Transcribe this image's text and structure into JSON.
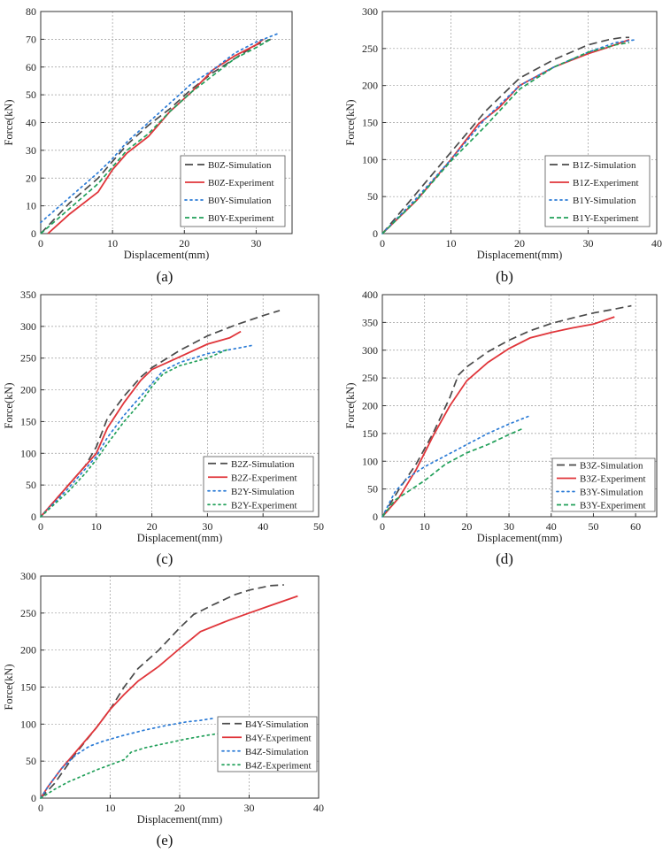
{
  "figure": {
    "panel_labels": [
      "(a)",
      "(b)",
      "(c)",
      "(d)",
      "(e)"
    ]
  },
  "colors": {
    "simulation_z": "#4a4a4a",
    "experiment_red": "#e0353a",
    "simulation_blue": "#2b7bd6",
    "experiment_green": "#22a05a"
  },
  "chart_data": [
    {
      "type": "line",
      "label": "(a)",
      "xlabel": "Displacement(mm)",
      "ylabel": "Force(kN)",
      "xlim": [
        0,
        35
      ],
      "ylim": [
        0,
        80
      ],
      "xticks": [
        0,
        10,
        20,
        30
      ],
      "yticks": [
        0,
        10,
        20,
        30,
        40,
        50,
        60,
        70,
        80
      ],
      "legend_position": "bottom-right",
      "series": [
        {
          "name": "B0Z-Simulation",
          "style": "dash",
          "color": "#4a4a4a",
          "x": [
            0,
            4,
            8,
            10,
            12,
            15,
            18,
            21,
            24,
            27,
            30,
            32
          ],
          "y": [
            0,
            11,
            20,
            26,
            32,
            39,
            45,
            52,
            58,
            63,
            68,
            70
          ]
        },
        {
          "name": "B0Z-Experiment",
          "style": "solid",
          "color": "#e0353a",
          "x": [
            1,
            4,
            8,
            10,
            12,
            15,
            18,
            21,
            24,
            27,
            30,
            31
          ],
          "y": [
            0,
            7,
            15,
            23,
            29,
            35,
            44,
            51,
            59,
            64,
            68,
            70
          ]
        },
        {
          "name": "B0Y-Simulation",
          "style": "dot",
          "color": "#2b7bd6",
          "x": [
            0,
            4,
            8,
            10,
            12,
            15,
            18,
            21,
            24,
            27,
            30,
            33
          ],
          "y": [
            4,
            13,
            22,
            27,
            33,
            40,
            47,
            54,
            59,
            65,
            69,
            72
          ]
        },
        {
          "name": "B0Y-Experiment",
          "style": "shortdash",
          "color": "#22a05a",
          "x": [
            0,
            4,
            8,
            10,
            12,
            15,
            18,
            21,
            24,
            27,
            30,
            32
          ],
          "y": [
            0,
            9,
            18,
            24,
            30,
            36,
            44,
            51,
            57,
            63,
            67,
            70
          ]
        }
      ]
    },
    {
      "type": "line",
      "label": "(b)",
      "xlabel": "Displacement(mm)",
      "ylabel": "Force(kN)",
      "xlim": [
        0,
        40
      ],
      "ylim": [
        0,
        300
      ],
      "xticks": [
        0,
        10,
        20,
        30,
        40
      ],
      "yticks": [
        0,
        50,
        100,
        150,
        200,
        250,
        300
      ],
      "legend_position": "bottom-right",
      "series": [
        {
          "name": "B1Z-Simulation",
          "style": "dash",
          "color": "#4a4a4a",
          "x": [
            0,
            5,
            10,
            15,
            20,
            25,
            30,
            33,
            35,
            36
          ],
          "y": [
            0,
            55,
            110,
            165,
            210,
            235,
            255,
            262,
            265,
            265
          ]
        },
        {
          "name": "B1Z-Experiment",
          "style": "solid",
          "color": "#e0353a",
          "x": [
            0,
            5,
            10,
            14,
            17,
            20,
            25,
            30,
            33,
            36
          ],
          "y": [
            0,
            45,
            100,
            148,
            170,
            200,
            225,
            243,
            252,
            262
          ]
        },
        {
          "name": "B1Y-Simulation",
          "style": "dot",
          "color": "#2b7bd6",
          "x": [
            0,
            5,
            10,
            15,
            20,
            25,
            30,
            34,
            37
          ],
          "y": [
            0,
            48,
            100,
            155,
            200,
            225,
            245,
            258,
            262
          ]
        },
        {
          "name": "B1Y-Experiment",
          "style": "shortdash",
          "color": "#22a05a",
          "x": [
            0,
            5,
            10,
            15,
            20,
            25,
            30,
            34,
            36
          ],
          "y": [
            0,
            45,
            98,
            145,
            195,
            225,
            245,
            255,
            258
          ]
        }
      ]
    },
    {
      "type": "line",
      "label": "(c)",
      "xlabel": "Displacement(mm)",
      "ylabel": "Force(kN)",
      "xlim": [
        0,
        50
      ],
      "ylim": [
        0,
        350
      ],
      "xticks": [
        0,
        10,
        20,
        30,
        40,
        50
      ],
      "yticks": [
        0,
        50,
        100,
        150,
        200,
        250,
        300,
        350
      ],
      "legend_position": "bottom-right",
      "series": [
        {
          "name": "B2Z-Simulation",
          "style": "dash",
          "color": "#4a4a4a",
          "x": [
            0,
            5,
            8,
            10,
            12,
            15,
            18,
            20,
            25,
            30,
            35,
            40,
            43
          ],
          "y": [
            0,
            50,
            80,
            110,
            155,
            190,
            220,
            235,
            262,
            285,
            302,
            317,
            325
          ]
        },
        {
          "name": "B2Z-Experiment",
          "style": "solid",
          "color": "#e0353a",
          "x": [
            0,
            5,
            8,
            10,
            12,
            15,
            18,
            20,
            25,
            30,
            34,
            36
          ],
          "y": [
            0,
            50,
            80,
            100,
            140,
            180,
            215,
            232,
            252,
            272,
            282,
            292
          ]
        },
        {
          "name": "B2Y-Simulation",
          "style": "dot",
          "color": "#2b7bd6",
          "x": [
            0,
            5,
            8,
            10,
            12,
            15,
            18,
            20,
            22,
            25,
            30,
            35,
            38
          ],
          "y": [
            0,
            45,
            75,
            95,
            125,
            160,
            190,
            210,
            230,
            243,
            257,
            265,
            270
          ]
        },
        {
          "name": "B2Y-Experiment",
          "style": "dot",
          "color": "#22a05a",
          "x": [
            0,
            5,
            8,
            10,
            12,
            15,
            18,
            20,
            22,
            25,
            30,
            34
          ],
          "y": [
            0,
            40,
            68,
            90,
            115,
            150,
            180,
            205,
            225,
            238,
            250,
            265
          ]
        }
      ]
    },
    {
      "type": "line",
      "label": "(d)",
      "xlabel": "Displacement(mm)",
      "ylabel": "Force(kN)",
      "xlim": [
        0,
        65
      ],
      "ylim": [
        0,
        400
      ],
      "xticks": [
        0,
        10,
        20,
        30,
        40,
        50,
        60
      ],
      "yticks": [
        0,
        50,
        100,
        150,
        200,
        250,
        300,
        350,
        400
      ],
      "legend_position": "bottom-right",
      "series": [
        {
          "name": "B3Z-Simulation",
          "style": "dash",
          "color": "#4a4a4a",
          "x": [
            0,
            4,
            8,
            12,
            16,
            18,
            20,
            25,
            30,
            35,
            40,
            45,
            50,
            55,
            59
          ],
          "y": [
            0,
            50,
            95,
            150,
            215,
            255,
            270,
            297,
            318,
            335,
            348,
            358,
            367,
            374,
            380
          ]
        },
        {
          "name": "B3Z-Experiment",
          "style": "solid",
          "color": "#e0353a",
          "x": [
            0,
            4,
            8,
            12,
            16,
            20,
            25,
            30,
            35,
            40,
            45,
            50,
            55
          ],
          "y": [
            0,
            35,
            85,
            145,
            200,
            245,
            278,
            303,
            322,
            332,
            340,
            347,
            360
          ]
        },
        {
          "name": "B3Y-Simulation",
          "style": "dot",
          "color": "#2b7bd6",
          "x": [
            0,
            3,
            6,
            10,
            15,
            20,
            25,
            30,
            35
          ],
          "y": [
            0,
            45,
            70,
            90,
            110,
            130,
            150,
            167,
            182
          ]
        },
        {
          "name": "B3Y-Experiment",
          "style": "shortdash",
          "color": "#22a05a",
          "x": [
            0,
            3,
            6,
            10,
            15,
            20,
            25,
            30,
            33
          ],
          "y": [
            0,
            30,
            45,
            65,
            95,
            115,
            130,
            148,
            158
          ]
        }
      ]
    },
    {
      "type": "line",
      "label": "(e)",
      "xlabel": "Displacement(mm)",
      "ylabel": "Force(kN)",
      "xlim": [
        0,
        40
      ],
      "ylim": [
        0,
        300
      ],
      "xticks": [
        0,
        10,
        20,
        30,
        40
      ],
      "yticks": [
        0,
        50,
        100,
        150,
        200,
        250,
        300
      ],
      "legend_position": "bottom-right",
      "series": [
        {
          "name": "B4Y-Simulation",
          "style": "dash",
          "color": "#4a4a4a",
          "x": [
            0,
            2,
            5,
            8,
            10,
            12,
            14,
            17,
            20,
            22,
            25,
            28,
            30,
            33,
            35
          ],
          "y": [
            0,
            20,
            60,
            95,
            120,
            150,
            175,
            200,
            230,
            248,
            262,
            275,
            281,
            287,
            288
          ]
        },
        {
          "name": "B4Y-Experiment",
          "style": "solid",
          "color": "#e0353a",
          "x": [
            0,
            1,
            3,
            5,
            8,
            10,
            12,
            14,
            17,
            20,
            23,
            27,
            30,
            33,
            37
          ],
          "y": [
            0,
            15,
            40,
            62,
            95,
            120,
            140,
            158,
            178,
            202,
            225,
            240,
            250,
            260,
            273
          ]
        },
        {
          "name": "B4Z-Simulation",
          "style": "dot",
          "color": "#2b7bd6",
          "x": [
            0,
            1,
            3,
            5,
            7,
            9,
            12,
            15,
            18,
            21,
            23,
            25
          ],
          "y": [
            0,
            15,
            40,
            58,
            70,
            77,
            85,
            92,
            98,
            103,
            105,
            108
          ]
        },
        {
          "name": "B4Z-Experiment",
          "style": "dot",
          "color": "#22a05a",
          "x": [
            0,
            2,
            4,
            6,
            8,
            10,
            12,
            13,
            15,
            18,
            21,
            24,
            27
          ],
          "y": [
            0,
            12,
            22,
            30,
            38,
            45,
            52,
            62,
            68,
            74,
            80,
            85,
            89
          ]
        }
      ]
    }
  ]
}
